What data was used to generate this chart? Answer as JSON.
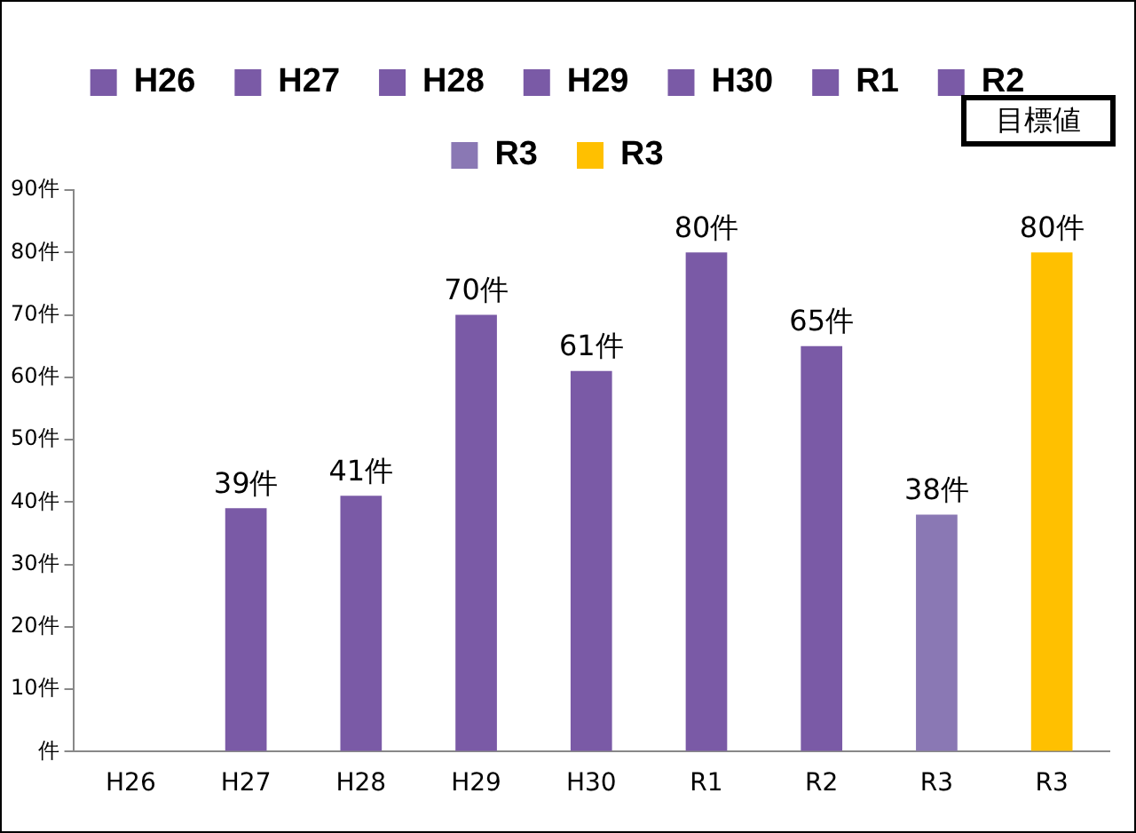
{
  "chart_data": {
    "type": "bar",
    "categories": [
      "H26",
      "H27",
      "H28",
      "H29",
      "H30",
      "R1",
      "R2",
      "R3",
      "R3"
    ],
    "stacked": true,
    "series": [
      {
        "name": "H26",
        "color": "#7a5aa6",
        "values": [
          0,
          null,
          null,
          null,
          null,
          null,
          null,
          null,
          null
        ]
      },
      {
        "name": "H27",
        "color": "#7a5aa6",
        "values": [
          null,
          39,
          null,
          null,
          null,
          null,
          null,
          null,
          null
        ],
        "value_labels": [
          null,
          "39件",
          null,
          null,
          null,
          null,
          null,
          null,
          null
        ]
      },
      {
        "name": "H28",
        "color": "#7a5aa6",
        "values": [
          null,
          null,
          41,
          null,
          null,
          null,
          null,
          null,
          null
        ],
        "value_labels": [
          null,
          null,
          "41件",
          null,
          null,
          null,
          null,
          null,
          null
        ]
      },
      {
        "name": "H29",
        "color": "#7a5aa6",
        "values": [
          null,
          null,
          null,
          70,
          null,
          null,
          null,
          null,
          null
        ],
        "value_labels": [
          null,
          null,
          null,
          "70件",
          null,
          null,
          null,
          null,
          null
        ]
      },
      {
        "name": "H30",
        "color": "#7a5aa6",
        "values": [
          null,
          null,
          null,
          null,
          61,
          null,
          null,
          null,
          null
        ],
        "value_labels": [
          null,
          null,
          null,
          null,
          "61件",
          null,
          null,
          null,
          null
        ]
      },
      {
        "name": "R1",
        "color": "#7a5aa6",
        "values": [
          null,
          null,
          null,
          null,
          null,
          80,
          null,
          null,
          null
        ],
        "value_labels": [
          null,
          null,
          null,
          null,
          null,
          "80件",
          null,
          null,
          null
        ]
      },
      {
        "name": "R2",
        "color": "#7a5aa6",
        "values": [
          null,
          null,
          null,
          null,
          null,
          null,
          65,
          null,
          null
        ],
        "value_labels": [
          null,
          null,
          null,
          null,
          null,
          null,
          "65件",
          null,
          null
        ]
      },
      {
        "name": "R3",
        "color": "#8a78b4",
        "values": [
          null,
          null,
          null,
          null,
          null,
          null,
          null,
          38,
          null
        ],
        "value_labels": [
          null,
          null,
          null,
          null,
          null,
          null,
          null,
          "38件",
          null
        ]
      },
      {
        "name": "R3",
        "color": "#ffc000",
        "values": [
          null,
          null,
          null,
          null,
          null,
          null,
          null,
          null,
          80
        ],
        "value_labels": [
          null,
          null,
          null,
          null,
          null,
          null,
          null,
          null,
          "80件"
        ]
      }
    ],
    "ylim": [
      0,
      90
    ],
    "yticks": [
      {
        "value": 0,
        "label": "件"
      },
      {
        "value": 10,
        "label": "10件"
      },
      {
        "value": 20,
        "label": "20件"
      },
      {
        "value": 30,
        "label": "30件"
      },
      {
        "value": 40,
        "label": "40件"
      },
      {
        "value": 50,
        "label": "50件"
      },
      {
        "value": 60,
        "label": "60件"
      },
      {
        "value": 70,
        "label": "70件"
      },
      {
        "value": 80,
        "label": "80件"
      },
      {
        "value": 90,
        "label": "90件"
      }
    ],
    "annotations": [
      "目標値"
    ],
    "legend": "top",
    "grid": false
  }
}
